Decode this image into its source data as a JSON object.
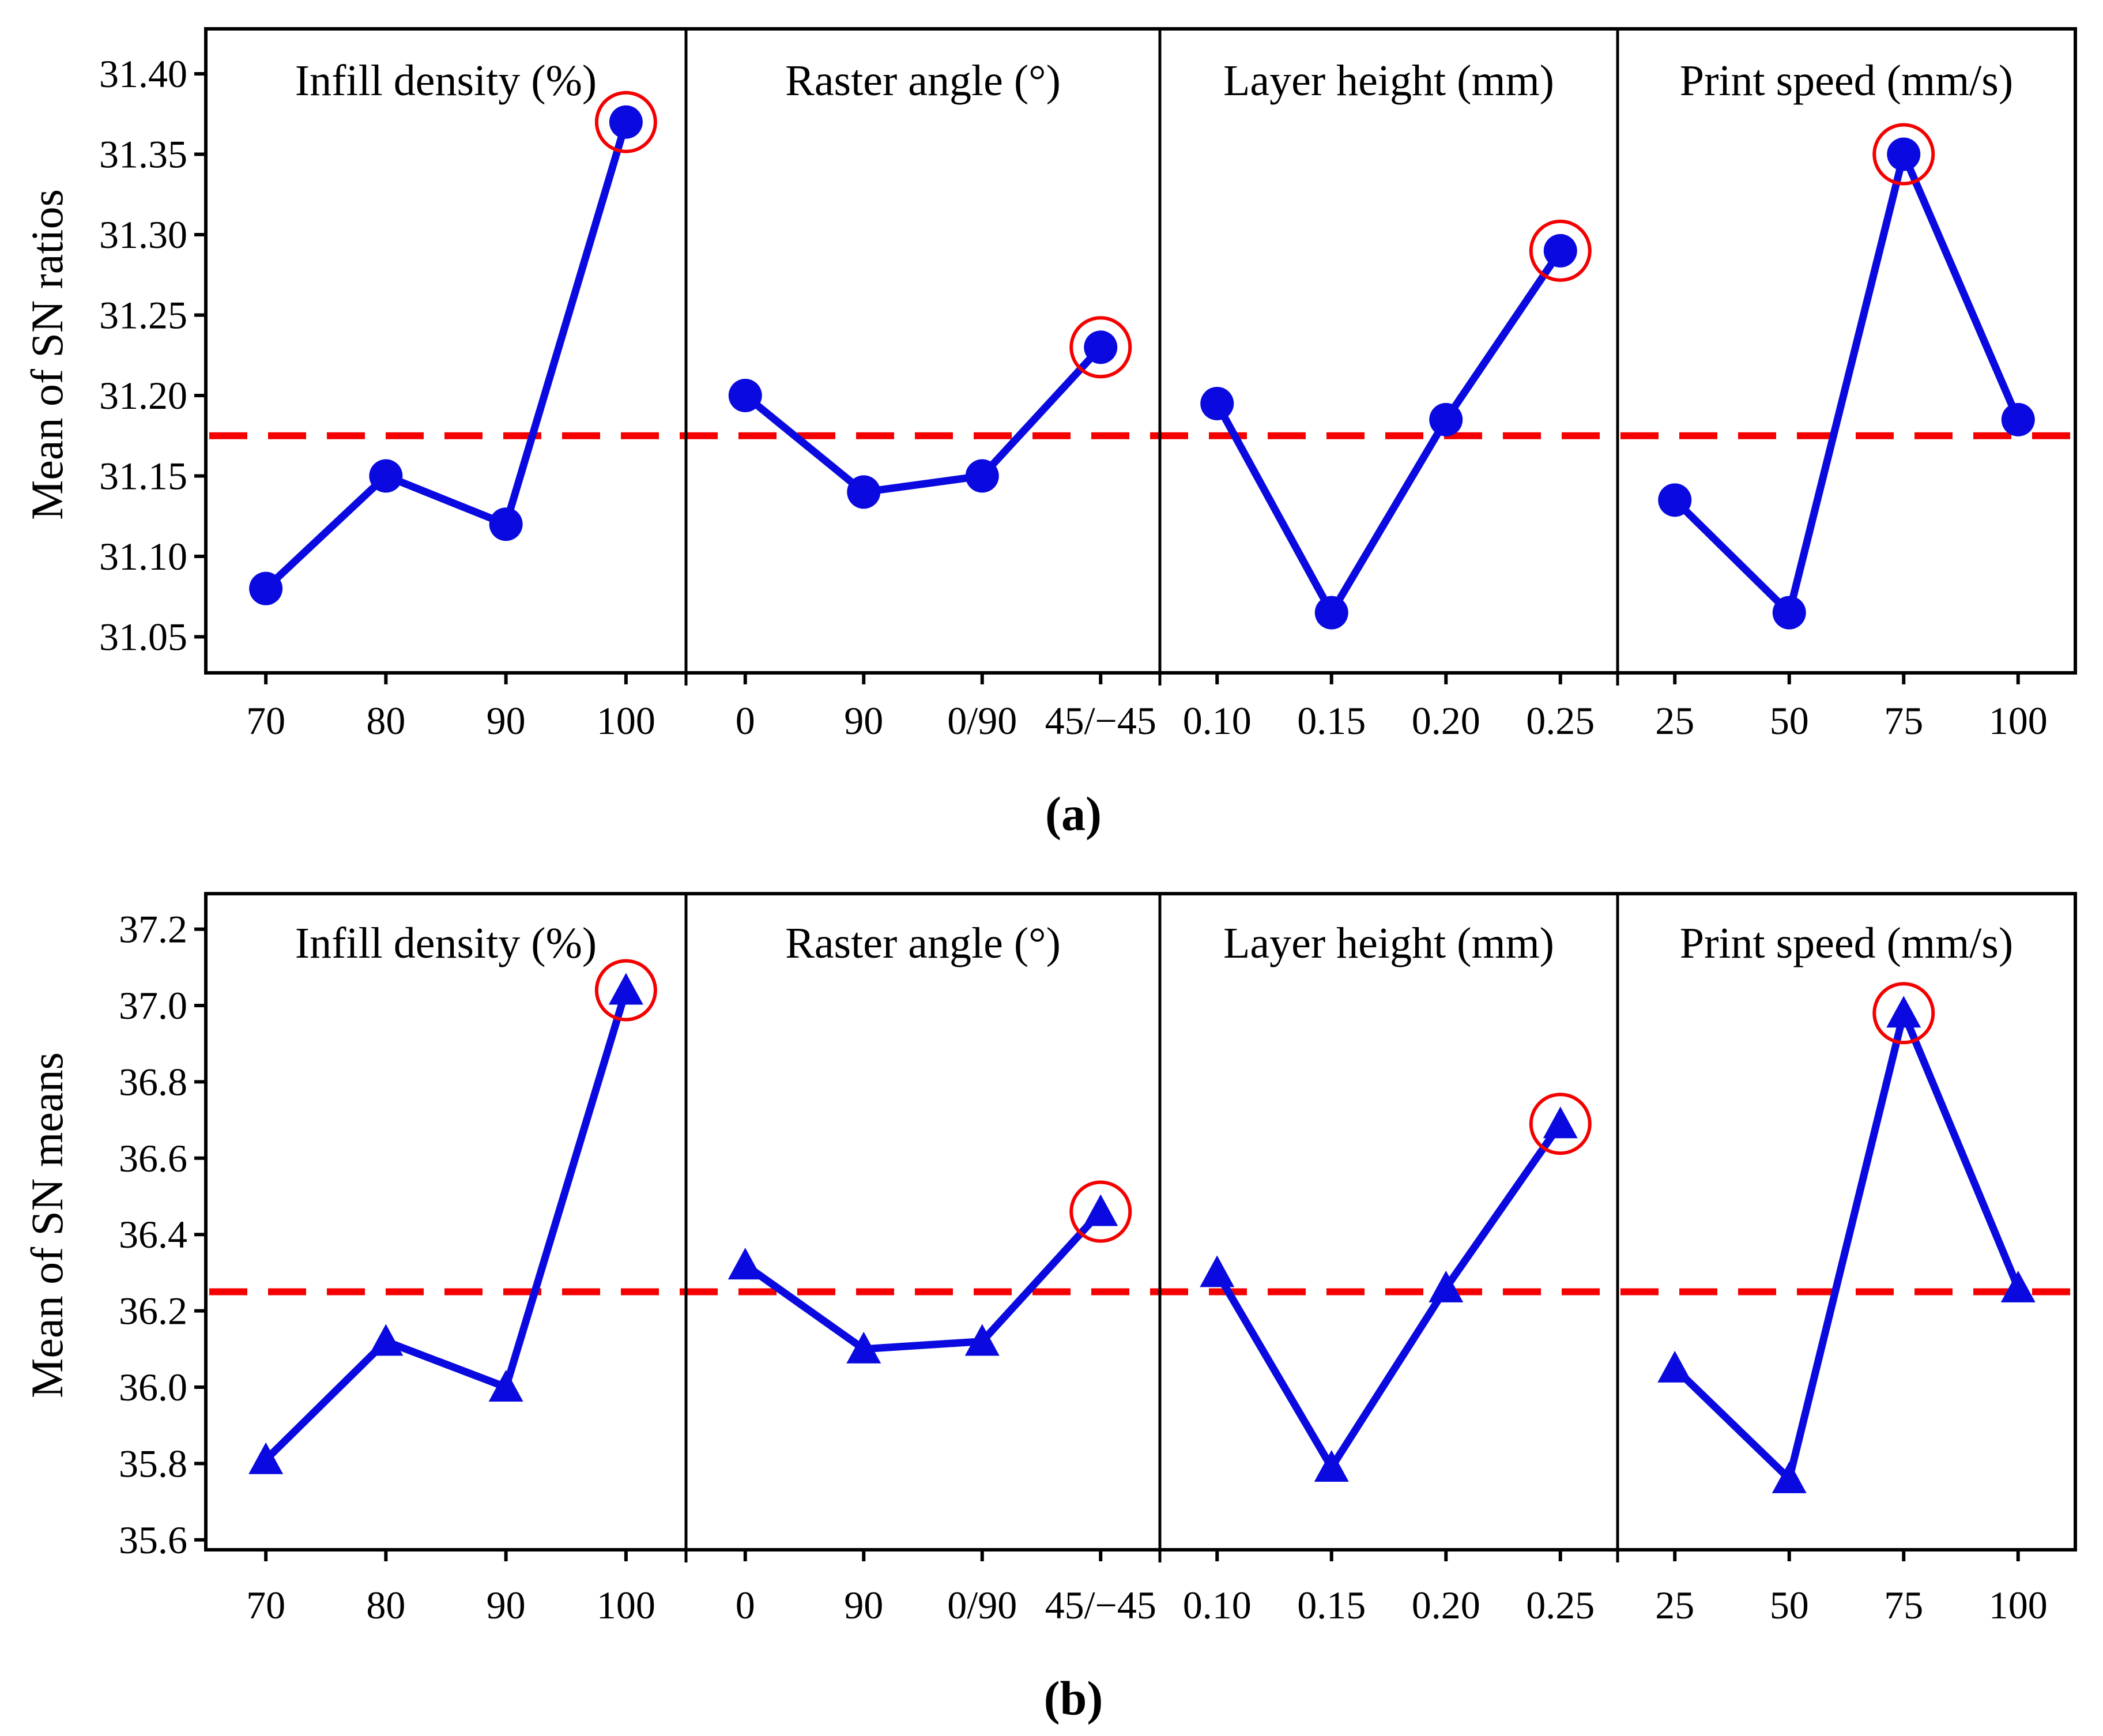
{
  "figure_captions": {
    "a": "(a)",
    "b": "(b)"
  },
  "colors": {
    "series": "#0a0ae0",
    "ref_line": "#f40000",
    "highlight_ring": "#f40000",
    "axis": "#000000",
    "background": "#ffffff"
  },
  "chart_data": [
    {
      "id": "a",
      "type": "line",
      "ylabel": "Mean of SN ratios",
      "caption": "(a)",
      "marker": "circle",
      "grid": false,
      "legend": "none",
      "ylim": [
        31.03,
        31.43
      ],
      "ytick_values": [
        31.05,
        31.1,
        31.15,
        31.2,
        31.25,
        31.3,
        31.35,
        31.4
      ],
      "ytick_labels": [
        "31.05",
        "31.10",
        "31.15",
        "31.20",
        "31.25",
        "31.30",
        "31.35",
        "31.40"
      ],
      "ref_line": 31.175,
      "panels": [
        {
          "title": "Infill density (%)",
          "categories": [
            "70",
            "80",
            "90",
            "100"
          ],
          "values": [
            31.08,
            31.15,
            31.12,
            31.37
          ],
          "circled_index": 3
        },
        {
          "title": "Raster angle (°)",
          "categories": [
            "0",
            "90",
            "0/90",
            "45/−45"
          ],
          "values": [
            31.2,
            31.14,
            31.15,
            31.23
          ],
          "circled_index": 3
        },
        {
          "title": "Layer height (mm)",
          "categories": [
            "0.10",
            "0.15",
            "0.20",
            "0.25"
          ],
          "values": [
            31.195,
            31.065,
            31.185,
            31.29
          ],
          "circled_index": 3
        },
        {
          "title": "Print speed (mm/s)",
          "categories": [
            "25",
            "50",
            "75",
            "100"
          ],
          "values": [
            31.135,
            31.065,
            31.35,
            31.185
          ],
          "circled_index": 2
        }
      ]
    },
    {
      "id": "b",
      "type": "line",
      "ylabel": "Mean of SN means",
      "caption": "(b)",
      "marker": "triangle",
      "grid": false,
      "legend": "none",
      "ylim": [
        35.57,
        37.29
      ],
      "ytick_values": [
        35.6,
        35.8,
        36.0,
        36.2,
        36.4,
        36.6,
        36.8,
        37.0,
        37.2
      ],
      "ytick_labels": [
        "35.6",
        "35.8",
        "36.0",
        "36.2",
        "36.4",
        "36.6",
        "36.8",
        "37.0",
        "37.2"
      ],
      "ref_line": 36.25,
      "panels": [
        {
          "title": "Infill density (%)",
          "categories": [
            "70",
            "80",
            "90",
            "100"
          ],
          "values": [
            35.81,
            36.12,
            36.0,
            37.04
          ],
          "circled_index": 3
        },
        {
          "title": "Raster angle (°)",
          "categories": [
            "0",
            "90",
            "0/90",
            "45/−45"
          ],
          "values": [
            36.32,
            36.1,
            36.12,
            36.46
          ],
          "circled_index": 3
        },
        {
          "title": "Layer height (mm)",
          "categories": [
            "0.10",
            "0.15",
            "0.20",
            "0.25"
          ],
          "values": [
            36.3,
            35.79,
            36.26,
            36.69
          ],
          "circled_index": 3
        },
        {
          "title": "Print speed (mm/s)",
          "categories": [
            "25",
            "50",
            "75",
            "100"
          ],
          "values": [
            36.05,
            35.76,
            36.98,
            36.26
          ],
          "circled_index": 2
        }
      ]
    }
  ]
}
